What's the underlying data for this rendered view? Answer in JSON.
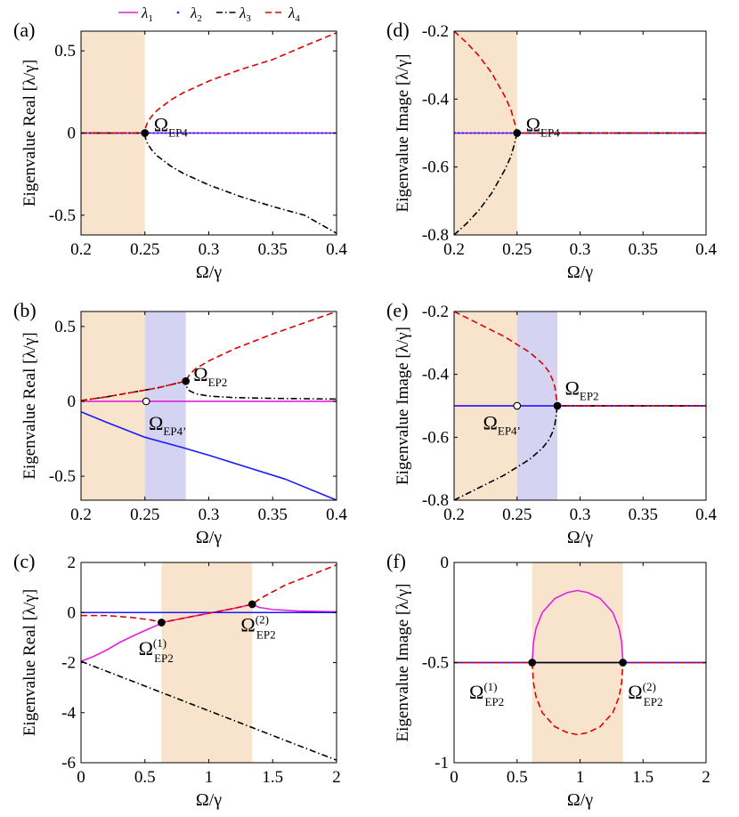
{
  "colors": {
    "lambda1": "#e020e0",
    "lambda2": "#1a1aff",
    "lambda3": "#000000",
    "lambda4": "#dd0000",
    "orange_band": "#f8e4cc",
    "purple_band": "#d4d4f2"
  },
  "legend": {
    "items": [
      {
        "sym": "λ",
        "sub": "1",
        "style": "solid",
        "color_key": "lambda1"
      },
      {
        "sym": "λ",
        "sub": "2",
        "style": "dot",
        "color_key": "lambda2"
      },
      {
        "sym": "λ",
        "sub": "3",
        "style": "dashdot",
        "color_key": "lambda3"
      },
      {
        "sym": "λ",
        "sub": "4",
        "style": "dashed",
        "color_key": "lambda4"
      }
    ]
  },
  "chart_data": [
    {
      "id": "a",
      "panel_label": "(a)",
      "type": "line",
      "xlabel": "Ω/γ",
      "ylabel": "Eigenvalue Real [λ/γ]",
      "xlim": [
        0.2,
        0.4
      ],
      "ylim": [
        -0.62,
        0.62
      ],
      "xticks": [
        0.2,
        0.25,
        0.3,
        0.35,
        0.4
      ],
      "xticklabels": [
        "0.2",
        "0.25",
        "0.3",
        "0.35",
        "0.4"
      ],
      "yticks": [
        -0.5,
        0,
        0.5
      ],
      "yticklabels": [
        "-0.5",
        "0",
        "0.5"
      ],
      "bands": [
        {
          "x0": 0.2,
          "x1": 0.25,
          "color_key": "orange_band"
        }
      ],
      "series": [
        {
          "name": "λ1",
          "color_key": "lambda1",
          "style": "solid",
          "x": [
            0.2,
            0.4
          ],
          "y": [
            0,
            0
          ]
        },
        {
          "name": "λ2",
          "color_key": "lambda2",
          "style": "dot",
          "x": [
            0.2,
            0.4
          ],
          "y": [
            0,
            0
          ]
        },
        {
          "name": "λ3",
          "color_key": "lambda3",
          "style": "dashdot",
          "x": [
            0.2,
            0.25,
            0.2505,
            0.252,
            0.255,
            0.26,
            0.27,
            0.28,
            0.3,
            0.325,
            0.35,
            0.375,
            0.4
          ],
          "y": [
            0,
            0,
            -0.032,
            -0.063,
            -0.1,
            -0.141,
            -0.2,
            -0.245,
            -0.316,
            -0.387,
            -0.447,
            -0.5,
            -0.61
          ]
        },
        {
          "name": "λ4",
          "color_key": "lambda4",
          "style": "dashed",
          "x": [
            0.2,
            0.25,
            0.2505,
            0.252,
            0.255,
            0.26,
            0.27,
            0.28,
            0.3,
            0.325,
            0.35,
            0.375,
            0.4
          ],
          "y": [
            0,
            0,
            0.032,
            0.063,
            0.1,
            0.141,
            0.2,
            0.245,
            0.316,
            0.387,
            0.447,
            0.53,
            0.61
          ]
        }
      ],
      "points": [
        {
          "x": 0.25,
          "y": 0,
          "filled": true
        }
      ],
      "annotations": [
        {
          "main": "Ω",
          "sub": "EP4",
          "sup": "",
          "x": 0.257,
          "y": 0.01
        }
      ]
    },
    {
      "id": "b",
      "panel_label": "(b)",
      "type": "line",
      "xlabel": "Ω/γ",
      "ylabel": "Eigenvalue Real [λ/γ]",
      "xlim": [
        0.2,
        0.4
      ],
      "ylim": [
        -0.66,
        0.6
      ],
      "xticks": [
        0.2,
        0.25,
        0.3,
        0.35,
        0.4
      ],
      "xticklabels": [
        "0.2",
        "0.25",
        "0.3",
        "0.35",
        "0.4"
      ],
      "yticks": [
        -0.5,
        0,
        0.5
      ],
      "yticklabels": [
        "-0.5",
        "0",
        "0.5"
      ],
      "bands": [
        {
          "x0": 0.2,
          "x1": 0.25,
          "color_key": "orange_band"
        },
        {
          "x0": 0.25,
          "x1": 0.282,
          "color_key": "purple_band"
        }
      ],
      "series": [
        {
          "name": "λ1",
          "color_key": "lambda1",
          "style": "solid",
          "x": [
            0.2,
            0.4
          ],
          "y": [
            0,
            0
          ]
        },
        {
          "name": "λ2",
          "color_key": "lambda2",
          "style": "solid",
          "x": [
            0.2,
            0.22,
            0.25,
            0.28,
            0.3,
            0.33,
            0.36,
            0.4
          ],
          "y": [
            -0.07,
            -0.14,
            -0.24,
            -0.31,
            -0.36,
            -0.44,
            -0.52,
            -0.66
          ]
        },
        {
          "name": "λ3",
          "color_key": "lambda3",
          "style": "dashdot",
          "x": [
            0.2,
            0.22,
            0.24,
            0.26,
            0.282,
            0.283,
            0.285,
            0.29,
            0.3,
            0.32,
            0.35,
            0.4
          ],
          "y": [
            0.005,
            0.03,
            0.06,
            0.09,
            0.135,
            0.09,
            0.07,
            0.05,
            0.035,
            0.025,
            0.02,
            0.015
          ]
        },
        {
          "name": "λ4",
          "color_key": "lambda4",
          "style": "dashed",
          "x": [
            0.2,
            0.22,
            0.24,
            0.26,
            0.282,
            0.285,
            0.29,
            0.3,
            0.32,
            0.35,
            0.38,
            0.4
          ],
          "y": [
            0.005,
            0.03,
            0.06,
            0.09,
            0.135,
            0.18,
            0.22,
            0.27,
            0.35,
            0.45,
            0.54,
            0.6
          ]
        }
      ],
      "points": [
        {
          "x": 0.282,
          "y": 0.135,
          "filled": true
        },
        {
          "x": 0.251,
          "y": 0,
          "filled": false
        }
      ],
      "annotations": [
        {
          "main": "Ω",
          "sub": "EP2",
          "sup": "",
          "x": 0.288,
          "y": 0.135
        },
        {
          "main": "Ω",
          "sub": "EP4’",
          "sup": "",
          "x": 0.253,
          "y": -0.19
        }
      ]
    },
    {
      "id": "c",
      "panel_label": "(c)",
      "type": "line",
      "xlabel": "Ω/γ",
      "ylabel": "Eigenvalue Real [λ/γ]",
      "xlim": [
        0,
        2
      ],
      "ylim": [
        -6,
        2
      ],
      "xticks": [
        0,
        0.5,
        1,
        1.5,
        2
      ],
      "xticklabels": [
        "0",
        "0.5",
        "1",
        "1.5",
        "2"
      ],
      "yticks": [
        -6,
        -4,
        -2,
        0,
        2
      ],
      "yticklabels": [
        "-6",
        "-4",
        "-2",
        "0",
        "2"
      ],
      "bands": [
        {
          "x0": 0.63,
          "x1": 1.34,
          "color_key": "orange_band"
        }
      ],
      "series": [
        {
          "name": "λ1",
          "color_key": "lambda1",
          "style": "solid",
          "x": [
            0,
            0.1,
            0.2,
            0.3,
            0.4,
            0.5,
            0.6,
            0.63,
            0.8,
            1.0,
            1.2,
            1.34,
            1.36,
            1.4,
            1.5,
            1.7,
            2.0
          ],
          "y": [
            -1.95,
            -1.75,
            -1.5,
            -1.2,
            -0.95,
            -0.72,
            -0.5,
            -0.4,
            -0.23,
            -0.03,
            0.17,
            0.33,
            0.28,
            0.2,
            0.12,
            0.06,
            0.03
          ]
        },
        {
          "name": "λ2",
          "color_key": "lambda2",
          "style": "solid",
          "x": [
            0,
            2
          ],
          "y": [
            0,
            0
          ]
        },
        {
          "name": "λ3",
          "color_key": "lambda3",
          "style": "dashdot",
          "x": [
            0,
            2
          ],
          "y": [
            -1.95,
            -5.9
          ]
        },
        {
          "name": "λ4",
          "color_key": "lambda4",
          "style": "dashed",
          "x": [
            0,
            0.2,
            0.4,
            0.55,
            0.63,
            0.8,
            1.0,
            1.2,
            1.34,
            1.4,
            1.5,
            1.6,
            1.8,
            2.0
          ],
          "y": [
            -0.12,
            -0.12,
            -0.2,
            -0.3,
            -0.4,
            -0.23,
            -0.03,
            0.17,
            0.33,
            0.55,
            0.83,
            1.1,
            1.5,
            1.9
          ]
        }
      ],
      "points": [
        {
          "x": 0.63,
          "y": -0.4,
          "filled": true
        },
        {
          "x": 1.34,
          "y": 0.33,
          "filled": true
        }
      ],
      "annotations": [
        {
          "main": "Ω",
          "sub": "EP2",
          "sup": "(1)",
          "x": 0.45,
          "y": -1.7
        },
        {
          "main": "Ω",
          "sub": "EP2",
          "sup": "(2)",
          "x": 1.25,
          "y": -0.75
        }
      ]
    },
    {
      "id": "d",
      "panel_label": "(d)",
      "type": "line",
      "xlabel": "Ω/γ",
      "ylabel": "Eigenvalue Image [λ/γ]",
      "xlim": [
        0.2,
        0.4
      ],
      "ylim": [
        -0.8,
        -0.2
      ],
      "xticks": [
        0.2,
        0.25,
        0.3,
        0.35,
        0.4
      ],
      "xticklabels": [
        "0.2",
        "0.25",
        "0.3",
        "0.35",
        "0.4"
      ],
      "yticks": [
        -0.8,
        -0.6,
        -0.4,
        -0.2
      ],
      "yticklabels": [
        "-0.8",
        "-0.6",
        "-0.4",
        "-0.2"
      ],
      "bands": [
        {
          "x0": 0.2,
          "x1": 0.25,
          "color_key": "orange_band"
        }
      ],
      "series": [
        {
          "name": "λ1",
          "color_key": "lambda1",
          "style": "solid",
          "x": [
            0.2,
            0.4
          ],
          "y": [
            -0.5,
            -0.5
          ]
        },
        {
          "name": "λ2",
          "color_key": "lambda2",
          "style": "dot",
          "x": [
            0.2,
            0.4
          ],
          "y": [
            -0.5,
            -0.5
          ]
        },
        {
          "name": "λ3",
          "color_key": "lambda3",
          "style": "dashdot",
          "x": [
            0.2,
            0.21,
            0.22,
            0.23,
            0.24,
            0.245,
            0.248,
            0.25,
            0.4
          ],
          "y": [
            -0.8,
            -0.766,
            -0.726,
            -0.676,
            -0.61,
            -0.57,
            -0.531,
            -0.5,
            -0.5
          ]
        },
        {
          "name": "λ4",
          "color_key": "lambda4",
          "style": "dashed",
          "x": [
            0.2,
            0.21,
            0.22,
            0.23,
            0.24,
            0.245,
            0.248,
            0.25,
            0.4
          ],
          "y": [
            -0.2,
            -0.234,
            -0.274,
            -0.324,
            -0.39,
            -0.43,
            -0.469,
            -0.5,
            -0.5
          ]
        }
      ],
      "points": [
        {
          "x": 0.25,
          "y": -0.5,
          "filled": true
        }
      ],
      "annotations": [
        {
          "main": "Ω",
          "sub": "EP4",
          "sup": "",
          "x": 0.257,
          "y": -0.495
        }
      ]
    },
    {
      "id": "e",
      "panel_label": "(e)",
      "type": "line",
      "xlabel": "Ω/γ",
      "ylabel": "Eigenvalue Image [λ/γ]",
      "xlim": [
        0.2,
        0.4
      ],
      "ylim": [
        -0.8,
        -0.2
      ],
      "xticks": [
        0.2,
        0.25,
        0.3,
        0.35,
        0.4
      ],
      "xticklabels": [
        "0.2",
        "0.25",
        "0.3",
        "0.35",
        "0.4"
      ],
      "yticks": [
        -0.8,
        -0.6,
        -0.4,
        -0.2
      ],
      "yticklabels": [
        "-0.8",
        "-0.6",
        "-0.4",
        "-0.2"
      ],
      "bands": [
        {
          "x0": 0.2,
          "x1": 0.25,
          "color_key": "orange_band"
        },
        {
          "x0": 0.25,
          "x1": 0.282,
          "color_key": "purple_band"
        }
      ],
      "series": [
        {
          "name": "λ1",
          "color_key": "lambda1",
          "style": "solid",
          "x": [
            0.2,
            0.4
          ],
          "y": [
            -0.5,
            -0.5
          ]
        },
        {
          "name": "λ2",
          "color_key": "lambda2",
          "style": "solid",
          "x": [
            0.2,
            0.4
          ],
          "y": [
            -0.5,
            -0.5
          ]
        },
        {
          "name": "λ3",
          "color_key": "lambda3",
          "style": "dashdot",
          "x": [
            0.2,
            0.22,
            0.24,
            0.26,
            0.27,
            0.275,
            0.278,
            0.28,
            0.282,
            0.4
          ],
          "y": [
            -0.8,
            -0.76,
            -0.72,
            -0.67,
            -0.635,
            -0.61,
            -0.585,
            -0.56,
            -0.5,
            -0.5
          ]
        },
        {
          "name": "λ4",
          "color_key": "lambda4",
          "style": "dashed",
          "x": [
            0.2,
            0.22,
            0.24,
            0.26,
            0.27,
            0.275,
            0.278,
            0.28,
            0.282,
            0.4
          ],
          "y": [
            -0.2,
            -0.24,
            -0.28,
            -0.33,
            -0.365,
            -0.39,
            -0.415,
            -0.44,
            -0.5,
            -0.5
          ]
        }
      ],
      "points": [
        {
          "x": 0.282,
          "y": -0.5,
          "filled": true
        },
        {
          "x": 0.25,
          "y": -0.5,
          "filled": false
        }
      ],
      "annotations": [
        {
          "main": "Ω",
          "sub": "EP2",
          "sup": "",
          "x": 0.288,
          "y": -0.465
        },
        {
          "main": "Ω",
          "sub": "EP4’",
          "sup": "",
          "x": 0.223,
          "y": -0.575
        }
      ]
    },
    {
      "id": "f",
      "panel_label": "(f)",
      "type": "line",
      "xlabel": "Ω/γ",
      "ylabel": "Eigenvalue Image [λ/γ]",
      "xlim": [
        0,
        2
      ],
      "ylim": [
        -1,
        0
      ],
      "xticks": [
        0,
        0.5,
        1,
        1.5,
        2
      ],
      "xticklabels": [
        "0",
        "0.5",
        "1",
        "1.5",
        "2"
      ],
      "yticks": [
        -1,
        -0.5,
        0
      ],
      "yticklabels": [
        "-1",
        "-0.5",
        "0"
      ],
      "bands": [
        {
          "x0": 0.62,
          "x1": 1.34,
          "color_key": "orange_band"
        }
      ],
      "series": [
        {
          "name": "λ1",
          "color_key": "lambda1",
          "style": "solid",
          "x": [
            0,
            0.62,
            0.63,
            0.65,
            0.7,
            0.8,
            0.9,
            0.98,
            1.06,
            1.16,
            1.26,
            1.31,
            1.33,
            1.34,
            2.0
          ],
          "y": [
            -0.5,
            -0.5,
            -0.4,
            -0.33,
            -0.25,
            -0.18,
            -0.15,
            -0.14,
            -0.15,
            -0.18,
            -0.25,
            -0.33,
            -0.4,
            -0.5,
            -0.5
          ]
        },
        {
          "name": "λ2",
          "color_key": "lambda2",
          "style": "solid",
          "x": [
            0,
            2
          ],
          "y": [
            -0.5,
            -0.5
          ]
        },
        {
          "name": "λ3",
          "color_key": "lambda3",
          "style": "solid",
          "x": [
            0.62,
            1.34
          ],
          "y": [
            -0.5,
            -0.5
          ]
        },
        {
          "name": "λ4",
          "color_key": "lambda4",
          "style": "dashed",
          "x": [
            0,
            0.62,
            0.63,
            0.65,
            0.7,
            0.8,
            0.9,
            0.98,
            1.06,
            1.16,
            1.26,
            1.31,
            1.33,
            1.34,
            2.0
          ],
          "y": [
            -0.5,
            -0.5,
            -0.6,
            -0.67,
            -0.75,
            -0.82,
            -0.85,
            -0.86,
            -0.85,
            -0.82,
            -0.75,
            -0.67,
            -0.6,
            -0.5,
            -0.5
          ]
        }
      ],
      "points": [
        {
          "x": 0.62,
          "y": -0.5,
          "filled": true
        },
        {
          "x": 1.34,
          "y": -0.5,
          "filled": true
        }
      ],
      "annotations": [
        {
          "main": "Ω",
          "sub": "EP2",
          "sup": "(1)",
          "x": 0.12,
          "y": -0.68
        },
        {
          "main": "Ω",
          "sub": "EP2",
          "sup": "(2)",
          "x": 1.38,
          "y": -0.68
        }
      ]
    }
  ]
}
